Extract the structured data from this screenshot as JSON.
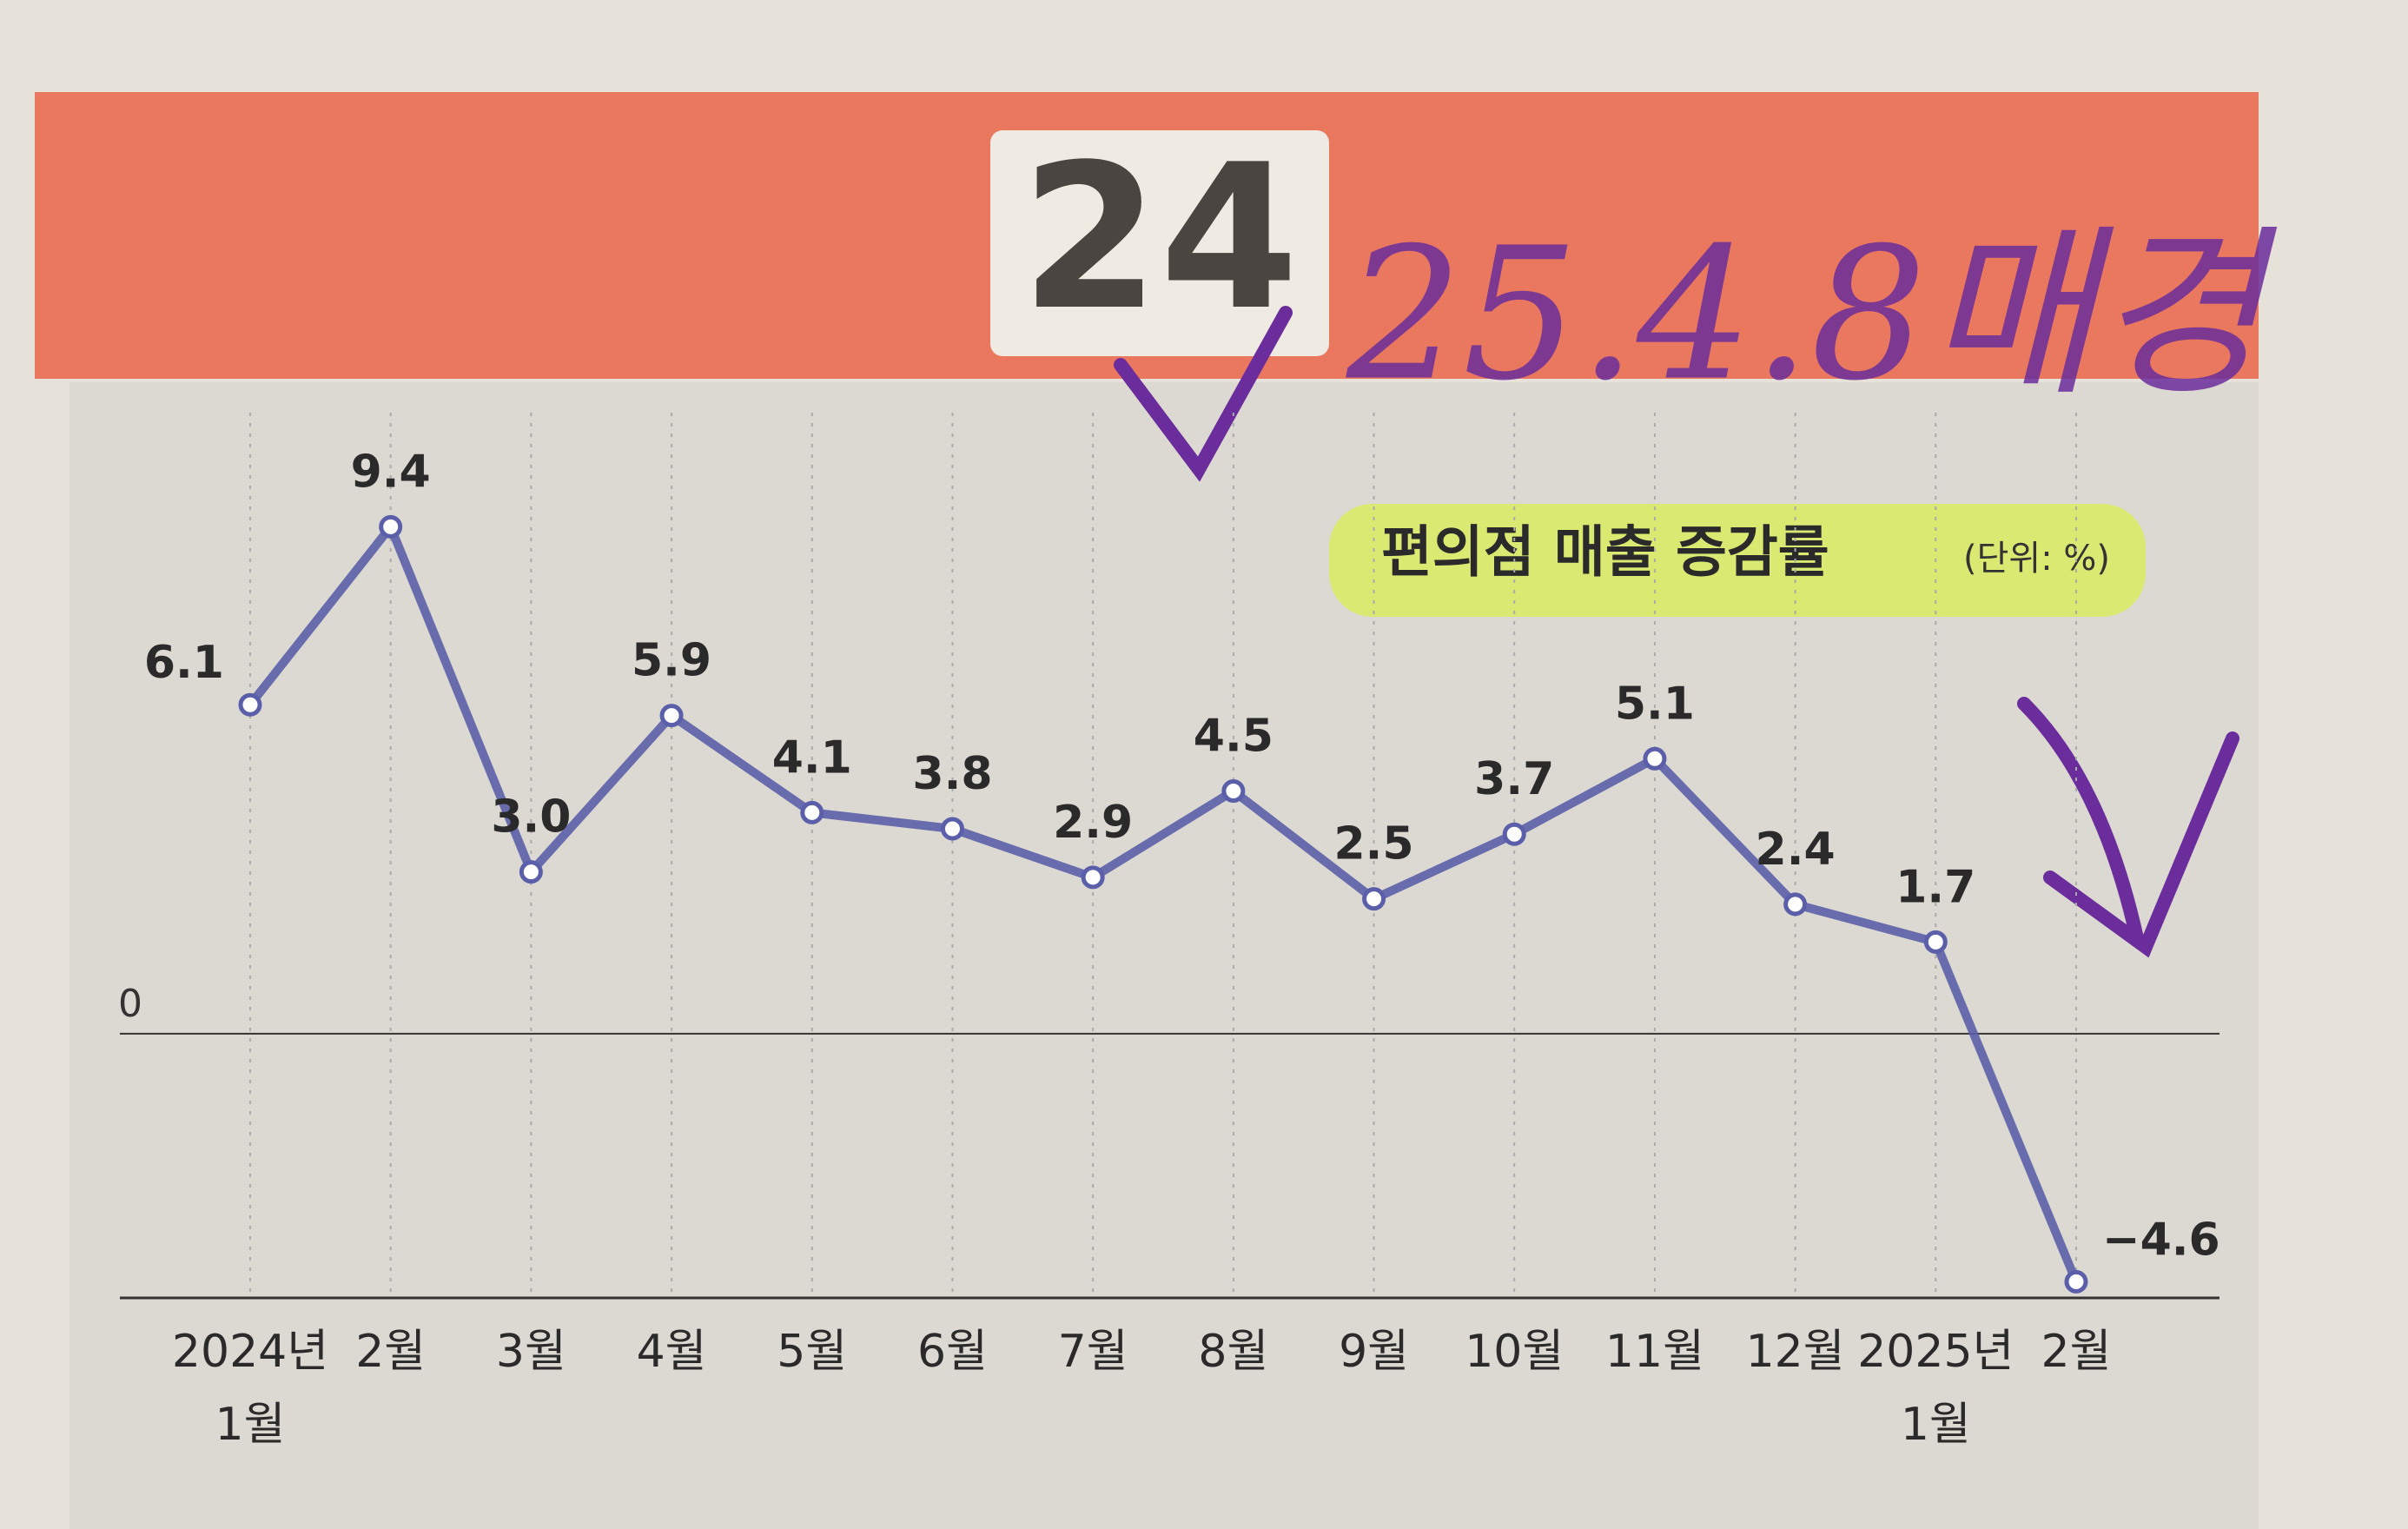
{
  "chart_data": {
    "type": "line",
    "title": "편의점 매출 증감률",
    "unit_label": "(단위: %)",
    "page_label": "24",
    "handwritten_note": "25.4.8매경",
    "categories": [
      "2024년\n1월",
      "2월",
      "3월",
      "4월",
      "5월",
      "6월",
      "7월",
      "8월",
      "9월",
      "10월",
      "11월",
      "12월",
      "2025년\n1월",
      "2월"
    ],
    "series": [
      {
        "name": "편의점 매출 증감률",
        "color": "#5b5fa9",
        "values": [
          6.1,
          9.4,
          3.0,
          5.9,
          4.1,
          3.8,
          2.9,
          4.5,
          2.5,
          3.7,
          5.1,
          2.4,
          1.7,
          -4.6
        ],
        "value_labels": [
          "6.1",
          "9.4",
          "3.0",
          "5.9",
          "4.1",
          "3.8",
          "2.9",
          "4.5",
          "2.5",
          "3.7",
          "5.1",
          "2.4",
          "1.7",
          "−4.6"
        ]
      }
    ],
    "ylim": [
      -4.9,
      12
    ],
    "yticks": [
      0
    ],
    "grid": true
  }
}
